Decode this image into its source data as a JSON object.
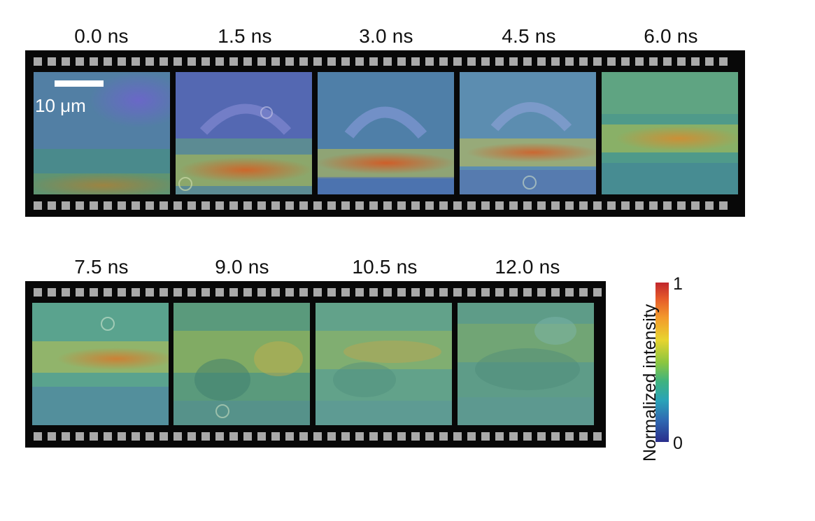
{
  "frames_row1": [
    {
      "label": "0.0 ns"
    },
    {
      "label": "1.5 ns"
    },
    {
      "label": "3.0 ns"
    },
    {
      "label": "4.5 ns"
    },
    {
      "label": "6.0 ns"
    }
  ],
  "frames_row2": [
    {
      "label": "7.5 ns"
    },
    {
      "label": "9.0 ns"
    },
    {
      "label": "10.5 ns"
    },
    {
      "label": "12.0 ns"
    }
  ],
  "scale_bar": {
    "label": "10 μm"
  },
  "colorbar": {
    "title": "Normalized intensity",
    "max_label": "1",
    "min_label": "0",
    "colors": [
      "#c1272d",
      "#e55a2a",
      "#f39a2b",
      "#e8d42e",
      "#8cc63f",
      "#3fb37f",
      "#2aa3b8",
      "#2f6bb3",
      "#2a2e8c"
    ]
  }
}
